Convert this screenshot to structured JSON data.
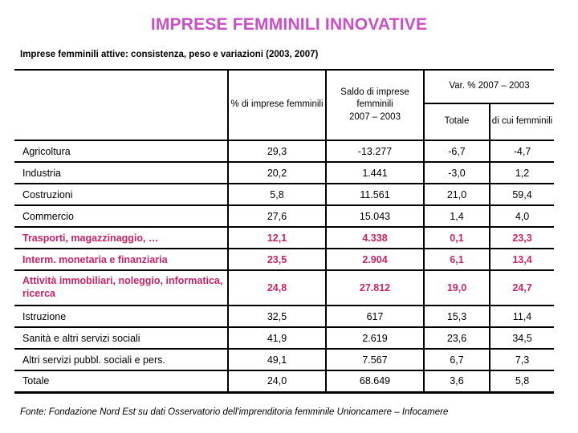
{
  "slide": {
    "title": "IMPRESE FEMMINILI INNOVATIVE",
    "subtitle": "Imprese femminili attive: consistenza, peso e variazioni (2003, 2007)",
    "source": "Fonte: Fondazione Nord Est su dati Osservatorio dell'imprenditoria femminile Unioncamere – Infocamere"
  },
  "colors": {
    "title_pink": "#cb4ec6",
    "highlight_pink": "#c82366",
    "line_black": "#000000"
  },
  "table": {
    "header": {
      "pct": "% di imprese femminili",
      "saldo_line1": "Saldo di imprese femminili",
      "saldo_line2": "2007 – 2003",
      "var_group": "Var. % 2007 – 2003",
      "var_totale": "Totale",
      "var_femminili": "di cui femminili"
    },
    "rows": [
      {
        "label": "Agricoltura",
        "pct": "29,3",
        "saldo": "-13.277",
        "var_totale": "-6,7",
        "var_femminili": "-4,7",
        "highlight": false
      },
      {
        "label": "Industria",
        "pct": "20,2",
        "saldo": "1.441",
        "var_totale": "-3,0",
        "var_femminili": "1,2",
        "highlight": false
      },
      {
        "label": "Costruzioni",
        "pct": "5,8",
        "saldo": "11.561",
        "var_totale": "21,0",
        "var_femminili": "59,4",
        "highlight": false
      },
      {
        "label": "Commercio",
        "pct": "27,6",
        "saldo": "15.043",
        "var_totale": "1,4",
        "var_femminili": "4,0",
        "highlight": false
      },
      {
        "label": "Trasporti, magazzinaggio, …",
        "pct": "12,1",
        "saldo": "4.338",
        "var_totale": "0,1",
        "var_femminili": "23,3",
        "highlight": true
      },
      {
        "label": "Interm. monetaria e finanziaria",
        "pct": "23,5",
        "saldo": "2.904",
        "var_totale": "6,1",
        "var_femminili": "13,4",
        "highlight": true
      },
      {
        "label": "Attività immobiliari, noleggio, informatica, ricerca",
        "pct": "24,8",
        "saldo": "27.812",
        "var_totale": "19,0",
        "var_femminili": "24,7",
        "highlight": true
      },
      {
        "label": "Istruzione",
        "pct": "32,5",
        "saldo": "617",
        "var_totale": "15,3",
        "var_femminili": "11,4",
        "highlight": false
      },
      {
        "label": "Sanità e altri servizi sociali",
        "pct": "41,9",
        "saldo": "2.619",
        "var_totale": "23,6",
        "var_femminili": "34,5",
        "highlight": false
      },
      {
        "label": "Altri servizi pubbl. sociali e pers.",
        "pct": "49,1",
        "saldo": "7.567",
        "var_totale": "6,7",
        "var_femminili": "7,3",
        "highlight": false
      },
      {
        "label": "Totale",
        "pct": "24,0",
        "saldo": "68.649",
        "var_totale": "3,6",
        "var_femminili": "5,8",
        "highlight": false
      }
    ]
  }
}
